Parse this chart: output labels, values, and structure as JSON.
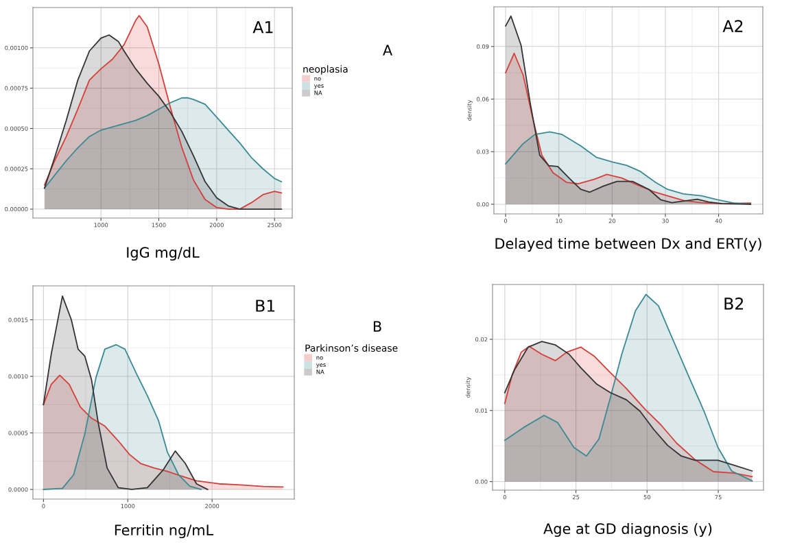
{
  "chart_data": [
    {
      "type": "area",
      "xlabel": "IgG mg/dL",
      "legend_title": "neoplasia",
      "legend": "right",
      "grid": true,
      "annotations": [
        "A1",
        "A"
      ],
      "xlim": [
        412,
        2653
      ],
      "xticks": [
        1000,
        1500,
        2000,
        2500
      ],
      "ylim": [
        -5.5e-05,
        0.00125
      ],
      "yticks": [
        {
          "value": 0,
          "label": "0.00000"
        },
        {
          "value": 0.00025,
          "label": "0.00025"
        },
        {
          "value": 0.0005,
          "label": "0.00050"
        },
        {
          "value": 0.00075,
          "label": "0.00075"
        },
        {
          "value": 0.001,
          "label": "0.00100"
        }
      ],
      "series": [
        {
          "name": "no",
          "color": "#d43f3a",
          "x": [
            512,
            600,
            700,
            800,
            900,
            1000,
            1100,
            1200,
            1300,
            1330,
            1400,
            1500,
            1600,
            1700,
            1800,
            1900,
            2000,
            2100,
            2200,
            2300,
            2400,
            2500,
            2560
          ],
          "values": [
            0.00015,
            0.0003,
            0.00045,
            0.00062,
            0.0008,
            0.00087,
            0.00093,
            0.00102,
            0.00117,
            0.0012,
            0.00113,
            0.0009,
            0.00063,
            0.00038,
            0.00018,
            6e-05,
            1e-05,
            0.0,
            0.0,
            4e-05,
            9e-05,
            0.00011,
            0.0001
          ]
        },
        {
          "name": "yes",
          "color": "#3b8a93",
          "x": [
            512,
            600,
            700,
            800,
            900,
            1000,
            1100,
            1200,
            1300,
            1400,
            1500,
            1600,
            1700,
            1750,
            1800,
            1900,
            2000,
            2100,
            2200,
            2300,
            2400,
            2500,
            2560
          ],
          "values": [
            0.00013,
            0.00021,
            0.0003,
            0.00038,
            0.00045,
            0.00049,
            0.00051,
            0.00053,
            0.00055,
            0.00058,
            0.00062,
            0.00066,
            0.00069,
            0.00069,
            0.00068,
            0.00065,
            0.00057,
            0.00049,
            0.00041,
            0.00032,
            0.00025,
            0.00019,
            0.00017
          ]
        },
        {
          "name": "NA",
          "color": "#333333",
          "x": [
            512,
            600,
            700,
            800,
            900,
            1000,
            1070,
            1150,
            1200,
            1300,
            1400,
            1500,
            1600,
            1700,
            1800,
            1900,
            2000,
            2100,
            2200,
            2300,
            2560
          ],
          "values": [
            0.00013,
            0.00032,
            0.00055,
            0.0008,
            0.00098,
            0.00106,
            0.00108,
            0.00104,
            0.00098,
            0.00087,
            0.00078,
            0.0007,
            0.0006,
            0.00048,
            0.00033,
            0.00017,
            7e-05,
            2e-05,
            0.0,
            0.0,
            0.0
          ]
        }
      ]
    },
    {
      "type": "area",
      "xlabel": "Delayed time between Dx and ERT(y)",
      "ylabel": "density",
      "grid": true,
      "annotations": [
        "A2"
      ],
      "xlim": [
        -2.2,
        48.3
      ],
      "xticks": [
        0,
        10,
        20,
        30,
        40
      ],
      "ylim": [
        -0.0055,
        0.1126
      ],
      "yticks": [
        {
          "value": 0,
          "label": "0.00"
        },
        {
          "value": 0.03,
          "label": "0.03"
        },
        {
          "value": 0.06,
          "label": "0.06"
        },
        {
          "value": 0.09,
          "label": "0.09"
        }
      ],
      "series": [
        {
          "color": "#d43f3a",
          "x": [
            0,
            1.6,
            3.3,
            5.1,
            6.8,
            8.9,
            11.5,
            13.6,
            16.7,
            19.0,
            21.8,
            24.8,
            27.8,
            30.4,
            33.4,
            36.8,
            40.7,
            46
          ],
          "values": [
            0.075,
            0.0861,
            0.0737,
            0.0489,
            0.028,
            0.018,
            0.0124,
            0.0117,
            0.0143,
            0.017,
            0.015,
            0.011,
            0.0072,
            0.0048,
            0.0022,
            0.0009,
            0.0003,
            0.0007
          ]
        },
        {
          "color": "#3b8a93",
          "x": [
            0,
            3.3,
            5.5,
            8.3,
            10.6,
            14.1,
            17.1,
            20.1,
            22.7,
            25.2,
            28.2,
            30.4,
            33.4,
            36.8,
            39.8,
            42.8,
            46
          ],
          "values": [
            0.0231,
            0.0346,
            0.0398,
            0.0413,
            0.0398,
            0.0333,
            0.0267,
            0.0241,
            0.0222,
            0.0189,
            0.0124,
            0.0085,
            0.0059,
            0.0048,
            0.0026,
            0.0007,
            0
          ]
        },
        {
          "color": "#333333",
          "x": [
            0,
            1.0,
            2.9,
            4.6,
            6.4,
            8.1,
            9.8,
            11.9,
            14.1,
            15.8,
            18.4,
            20.9,
            23.9,
            26.9,
            29.1,
            31.2,
            33.8,
            36,
            38.1,
            40.7,
            46
          ],
          "values": [
            0.1017,
            0.1073,
            0.0907,
            0.058,
            0.028,
            0.022,
            0.0215,
            0.015,
            0.0085,
            0.0069,
            0.0104,
            0.013,
            0.013,
            0.0085,
            0.0026,
            0.0009,
            0.002,
            0.0029,
            0.0013,
            0.0003,
            0
          ]
        }
      ]
    },
    {
      "type": "area",
      "xlabel": "Ferritin ng/mL",
      "legend_title": "Parkinson’s disease",
      "legend": "right",
      "grid": true,
      "annotations": [
        "B1",
        "B"
      ],
      "xlim": [
        -125,
        2975
      ],
      "xticks": [
        0,
        1000,
        2000
      ],
      "ylim": [
        -8.5e-05,
        0.0018
      ],
      "yticks": [
        {
          "value": 0,
          "label": "0.0000"
        },
        {
          "value": 0.0005,
          "label": "0.0005"
        },
        {
          "value": 0.001,
          "label": "0.0010"
        },
        {
          "value": 0.0015,
          "label": "0.0015"
        }
      ],
      "series": [
        {
          "name": "no",
          "color": "#d43f3a",
          "x": [
            0,
            93,
            193,
            305,
            437,
            570,
            728,
            887,
            1020,
            1152,
            1311,
            1470,
            1629,
            1815,
            2079,
            2344,
            2609,
            2840
          ],
          "values": [
            0.00075,
            0.00093,
            0.00101,
            0.00093,
            0.00073,
            0.00063,
            0.00056,
            0.00043,
            0.00031,
            0.00023,
            0.00019,
            0.00016,
            0.00012,
            7.7e-05,
            5e-05,
            4e-05,
            2.6e-05,
            2.2e-05
          ]
        },
        {
          "name": "yes",
          "color": "#3b8a93",
          "x": [
            0,
            225,
            358,
            490,
            623,
            728,
            861,
            967,
            1099,
            1232,
            1364,
            1470,
            1603,
            1735,
            1868
          ],
          "values": [
            0,
            1e-05,
            0.00013,
            0.00049,
            0.00099,
            0.00124,
            0.00128,
            0.00124,
            0.00103,
            0.00083,
            0.00061,
            0.00033,
            0.00013,
            3e-05,
            0
          ]
        },
        {
          "name": "NA",
          "color": "#333333",
          "x": [
            0,
            93,
            225,
            331,
            411,
            490,
            570,
            649,
            755,
            887,
            1046,
            1232,
            1417,
            1563,
            1682,
            1815,
            1947
          ],
          "values": [
            0.00075,
            0.0012,
            0.00171,
            0.0015,
            0.00124,
            0.00118,
            0.00097,
            0.00059,
            0.00019,
            1.6e-05,
            0,
            1.6e-05,
            0.00017,
            0.00034,
            0.00023,
            5e-05,
            0
          ]
        }
      ]
    },
    {
      "type": "area",
      "xlabel": "Age at GD diagnosis (y)",
      "ylabel": "density",
      "grid": true,
      "annotations": [
        "B2"
      ],
      "xlim": [
        -4.3,
        90.9
      ],
      "xticks": [
        0,
        25,
        50,
        75
      ],
      "ylim": [
        -0.0012,
        0.0277
      ],
      "yticks": [
        {
          "value": 0,
          "label": "0.00"
        },
        {
          "value": 0.01,
          "label": "0.01"
        },
        {
          "value": 0.02,
          "label": "0.02"
        }
      ],
      "series": [
        {
          "color": "#d43f3a",
          "x": [
            0,
            2.6,
            5.8,
            8.6,
            13,
            17.8,
            21.8,
            26.7,
            31.5,
            37.1,
            42.7,
            49.2,
            54.8,
            60.4,
            66.8,
            73.3,
            80.5,
            86.9
          ],
          "values": [
            0.011,
            0.015,
            0.0182,
            0.019,
            0.0179,
            0.017,
            0.0182,
            0.0189,
            0.0176,
            0.0153,
            0.0131,
            0.0102,
            0.008,
            0.0054,
            0.0031,
            0.0014,
            0.0012,
            0.0007
          ]
        },
        {
          "color": "#3b8a93",
          "x": [
            0,
            6.6,
            13.8,
            18.6,
            24.3,
            28.7,
            33.1,
            37.1,
            41.1,
            45.9,
            49.6,
            54,
            58.8,
            64.4,
            70,
            74.9,
            79.7,
            86.9
          ],
          "values": [
            0.0058,
            0.0076,
            0.0093,
            0.0083,
            0.0048,
            0.0036,
            0.006,
            0.0118,
            0.0179,
            0.024,
            0.0263,
            0.0247,
            0.0202,
            0.015,
            0.0099,
            0.0048,
            0.0015,
            0.0001
          ]
        },
        {
          "color": "#333333",
          "x": [
            0,
            3.4,
            8.2,
            13,
            17.8,
            22.6,
            26.7,
            32.3,
            37.1,
            42.7,
            47.5,
            52.4,
            57.2,
            62,
            66.8,
            74.9,
            81.3,
            86.9
          ],
          "values": [
            0.0125,
            0.0157,
            0.0189,
            0.0197,
            0.0192,
            0.0179,
            0.016,
            0.0137,
            0.0125,
            0.0115,
            0.0099,
            0.0073,
            0.0051,
            0.0036,
            0.003,
            0.003,
            0.0022,
            0.0015
          ]
        }
      ]
    }
  ]
}
